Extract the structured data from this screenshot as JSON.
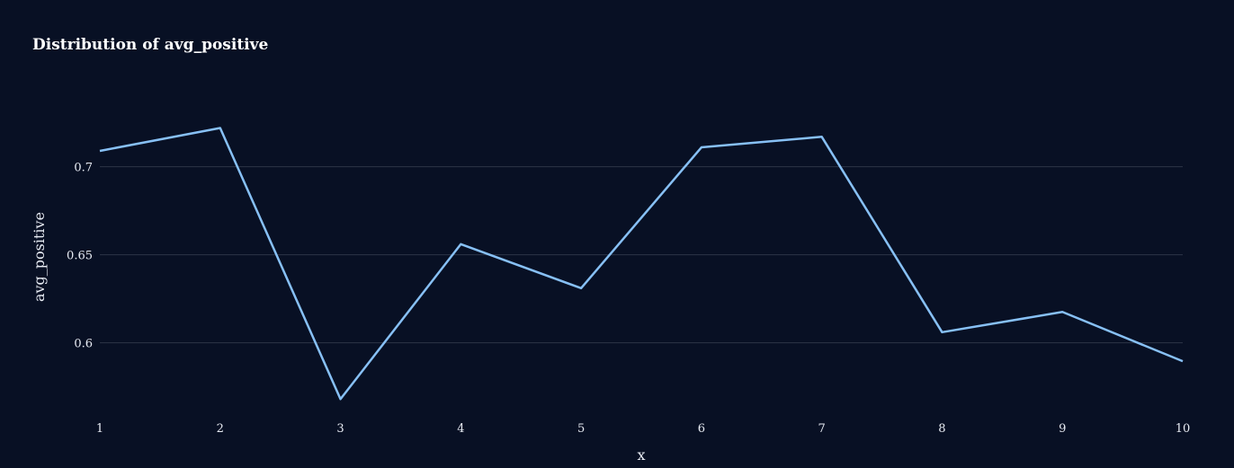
{
  "chart_data": {
    "type": "line",
    "title": "Distribution of avg_positive",
    "xlabel": "x",
    "ylabel": "avg_positive",
    "x": [
      1,
      2,
      3,
      4,
      5,
      6,
      7,
      8,
      9,
      10
    ],
    "series": [
      {
        "values": [
          0.709,
          0.722,
          0.568,
          0.656,
          0.631,
          0.711,
          0.717,
          0.606,
          0.6175,
          0.5895
        ]
      }
    ],
    "xticks": [
      "1",
      "2",
      "3",
      "4",
      "5",
      "6",
      "7",
      "8",
      "9",
      "10"
    ],
    "yticks": [
      "0.6",
      "0.65",
      "0.7"
    ],
    "ytick_values": [
      0.6,
      0.65,
      0.7
    ],
    "xlim": [
      1,
      10
    ],
    "ylim": [
      0.561,
      0.7345
    ],
    "grid": "horizontal",
    "line_color": "#87c0f5",
    "background_color": "#081024"
  }
}
